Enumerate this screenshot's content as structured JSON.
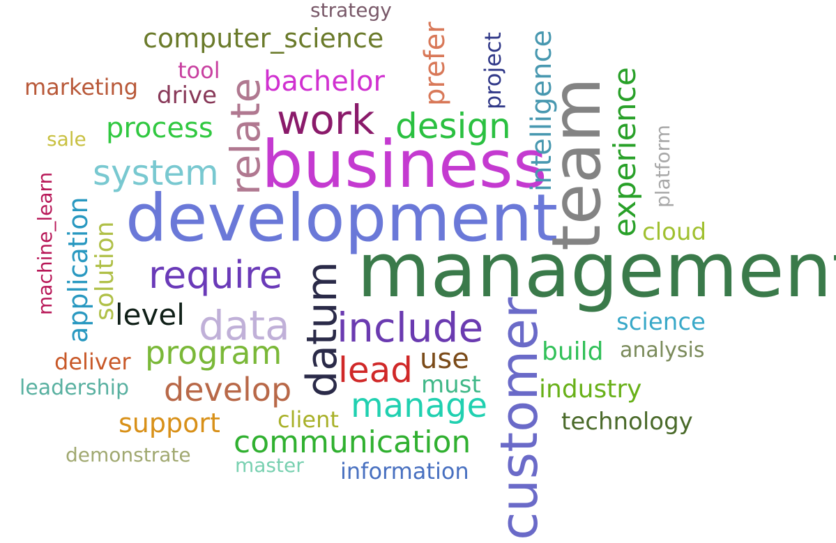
{
  "words": [
    {
      "text": "management",
      "color": "#3a7a4a"
    },
    {
      "text": "development",
      "color": "#6a78d8"
    },
    {
      "text": "business",
      "color": "#c43ad0"
    },
    {
      "text": "team",
      "color": "#838383"
    },
    {
      "text": "customer",
      "color": "#6a6ac8"
    },
    {
      "text": "include",
      "color": "#6a3ab0"
    },
    {
      "text": "datum",
      "color": "#2a2a48"
    },
    {
      "text": "require",
      "color": "#6a3ab8"
    },
    {
      "text": "data",
      "color": "#c0b0d8"
    },
    {
      "text": "relate",
      "color": "#b07890"
    },
    {
      "text": "work",
      "color": "#8a1a6a"
    },
    {
      "text": "design",
      "color": "#2ac040"
    },
    {
      "text": "system",
      "color": "#78c8d0"
    },
    {
      "text": "lead",
      "color": "#d02828"
    },
    {
      "text": "manage",
      "color": "#20d0b0"
    },
    {
      "text": "develop",
      "color": "#b86848"
    },
    {
      "text": "program",
      "color": "#7ab838"
    },
    {
      "text": "communication",
      "color": "#30b030"
    },
    {
      "text": "experience",
      "color": "#28a028"
    },
    {
      "text": "intelligence",
      "color": "#4898b0"
    },
    {
      "text": "computer_science",
      "color": "#6a7a2a"
    },
    {
      "text": "bachelor",
      "color": "#d030d0"
    },
    {
      "text": "prefer",
      "color": "#d87858"
    },
    {
      "text": "process",
      "color": "#30c840"
    },
    {
      "text": "use",
      "color": "#7a4a18"
    },
    {
      "text": "level",
      "color": "#102018"
    },
    {
      "text": "application",
      "color": "#2898c0"
    },
    {
      "text": "solution",
      "color": "#b0c048"
    },
    {
      "text": "project",
      "color": "#303888"
    },
    {
      "text": "support",
      "color": "#d89018"
    },
    {
      "text": "industry",
      "color": "#68b018"
    },
    {
      "text": "build",
      "color": "#30c058"
    },
    {
      "text": "technology",
      "color": "#4a6a2a"
    },
    {
      "text": "science",
      "color": "#38a8c8"
    },
    {
      "text": "cloud",
      "color": "#a0c030"
    },
    {
      "text": "must",
      "color": "#40b888"
    },
    {
      "text": "information",
      "color": "#4870c0"
    },
    {
      "text": "marketing",
      "color": "#b85838"
    },
    {
      "text": "drive",
      "color": "#883858"
    },
    {
      "text": "tool",
      "color": "#c840a0"
    },
    {
      "text": "client",
      "color": "#a8b028"
    },
    {
      "text": "deliver",
      "color": "#c85828"
    },
    {
      "text": "leadership",
      "color": "#58b0a0"
    },
    {
      "text": "analysis",
      "color": "#7a8a5a"
    },
    {
      "text": "machine_learn",
      "color": "#b81858"
    },
    {
      "text": "platform",
      "color": "#a8a8a8"
    },
    {
      "text": "demonstrate",
      "color": "#a0a870"
    },
    {
      "text": "master",
      "color": "#78d0b0"
    },
    {
      "text": "strategy",
      "color": "#785868"
    },
    {
      "text": "sale",
      "color": "#c8c040"
    }
  ]
}
